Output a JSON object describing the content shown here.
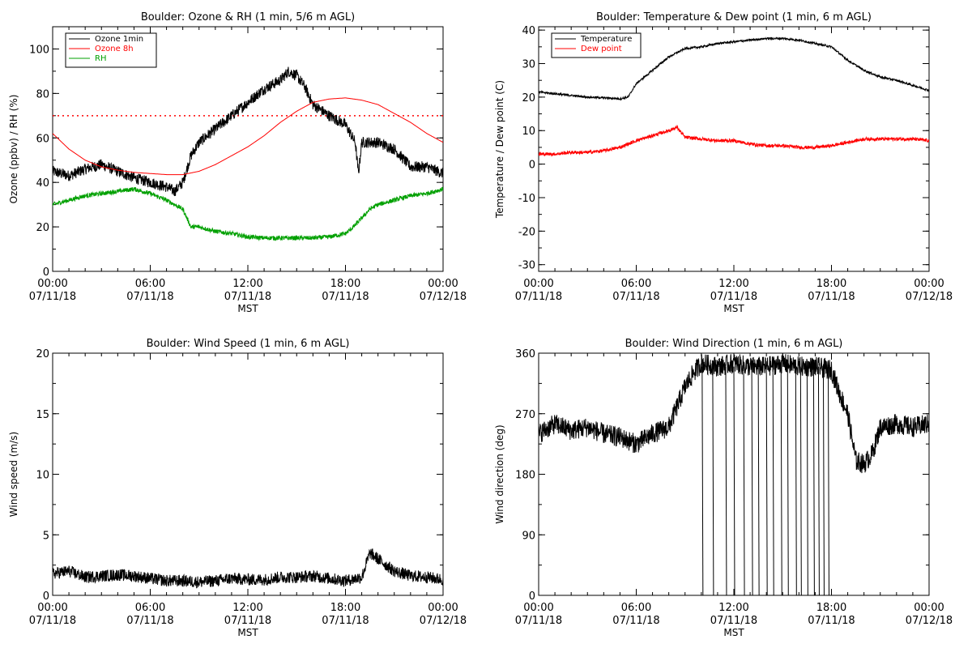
{
  "chart_data": [
    {
      "type": "line",
      "title": "Boulder: Ozone & RH (1 min, 5/6 m AGL)",
      "xlabel": "MST",
      "ylabel": "Ozone (ppbv) / RH (%)",
      "xlim": [
        0,
        24
      ],
      "ylim": [
        0,
        110
      ],
      "yticks": [
        0,
        20,
        40,
        60,
        80,
        100
      ],
      "xticks": [
        {
          "x": 0,
          "time": "00:00",
          "date": "07/11/18"
        },
        {
          "x": 6,
          "time": "06:00",
          "date": "07/11/18"
        },
        {
          "x": 12,
          "time": "12:00",
          "date": "07/11/18"
        },
        {
          "x": 18,
          "time": "18:00",
          "date": "07/11/18"
        },
        {
          "x": 24,
          "time": "00:00",
          "date": "07/12/18"
        }
      ],
      "reference_line": {
        "y": 70,
        "color": "#ff0000",
        "style": "dotted"
      },
      "legend": {
        "placement": "top-left"
      },
      "series": [
        {
          "name": "Ozone 1min",
          "color": "#000000",
          "noise": 2.5,
          "points": [
            [
              0,
              45
            ],
            [
              1,
              43
            ],
            [
              2,
              46
            ],
            [
              3,
              48
            ],
            [
              4,
              45
            ],
            [
              5,
              42
            ],
            [
              6,
              40
            ],
            [
              7,
              38
            ],
            [
              7.5,
              36
            ],
            [
              8,
              40
            ],
            [
              8.5,
              52
            ],
            [
              9,
              58
            ],
            [
              10,
              64
            ],
            [
              11,
              70
            ],
            [
              12,
              76
            ],
            [
              13,
              82
            ],
            [
              14,
              86
            ],
            [
              14.5,
              90
            ],
            [
              15,
              88
            ],
            [
              15.5,
              83
            ],
            [
              16,
              75
            ],
            [
              17,
              70
            ],
            [
              18,
              66
            ],
            [
              18.6,
              58
            ],
            [
              18.8,
              44
            ],
            [
              19,
              58
            ],
            [
              20,
              58
            ],
            [
              21,
              55
            ],
            [
              22,
              47
            ],
            [
              23,
              47
            ],
            [
              24,
              44
            ]
          ]
        },
        {
          "name": "Ozone 8h",
          "color": "#ff0000",
          "noise": 0,
          "points": [
            [
              0,
              62
            ],
            [
              1,
              55
            ],
            [
              2,
              50
            ],
            [
              3,
              47
            ],
            [
              4,
              45.5
            ],
            [
              5,
              44.5
            ],
            [
              6,
              44
            ],
            [
              7,
              43.5
            ],
            [
              8,
              43.5
            ],
            [
              9,
              45
            ],
            [
              10,
              48
            ],
            [
              11,
              52
            ],
            [
              12,
              56
            ],
            [
              13,
              61
            ],
            [
              14,
              67
            ],
            [
              15,
              72
            ],
            [
              16,
              76
            ],
            [
              17,
              77.5
            ],
            [
              18,
              78
            ],
            [
              19,
              77
            ],
            [
              20,
              75
            ],
            [
              21,
              71
            ],
            [
              22,
              67
            ],
            [
              23,
              62
            ],
            [
              24,
              58
            ]
          ]
        },
        {
          "name": "RH",
          "color": "#00a000",
          "noise": 1,
          "points": [
            [
              0,
              30
            ],
            [
              1,
              32
            ],
            [
              2,
              34
            ],
            [
              3,
              35
            ],
            [
              4,
              36
            ],
            [
              5,
              37
            ],
            [
              6,
              35
            ],
            [
              7,
              32
            ],
            [
              8,
              28
            ],
            [
              8.5,
              20
            ],
            [
              9,
              20
            ],
            [
              10,
              18
            ],
            [
              11,
              17
            ],
            [
              12,
              15.5
            ],
            [
              13,
              15
            ],
            [
              14,
              15
            ],
            [
              15,
              15
            ],
            [
              16,
              15
            ],
            [
              17,
              15.5
            ],
            [
              18,
              17
            ],
            [
              18.5,
              20
            ],
            [
              19,
              24
            ],
            [
              19.5,
              28
            ],
            [
              20,
              30
            ],
            [
              21,
              32
            ],
            [
              22,
              34
            ],
            [
              23,
              35
            ],
            [
              24,
              37
            ]
          ]
        }
      ]
    },
    {
      "type": "line",
      "title": "Boulder: Temperature & Dew point (1 min, 6 m AGL)",
      "xlabel": "MST",
      "ylabel": "Temperature / Dew point (C)",
      "xlim": [
        0,
        24
      ],
      "ylim": [
        -32,
        41
      ],
      "yticks": [
        -30,
        -20,
        -10,
        0,
        10,
        20,
        30,
        40
      ],
      "xticks": [
        {
          "x": 0,
          "time": "00:00",
          "date": "07/11/18"
        },
        {
          "x": 6,
          "time": "06:00",
          "date": "07/11/18"
        },
        {
          "x": 12,
          "time": "12:00",
          "date": "07/11/18"
        },
        {
          "x": 18,
          "time": "18:00",
          "date": "07/11/18"
        },
        {
          "x": 24,
          "time": "00:00",
          "date": "07/12/18"
        }
      ],
      "legend": {
        "placement": "top-left"
      },
      "series": [
        {
          "name": "Temperature",
          "color": "#000000",
          "noise": 0.3,
          "points": [
            [
              0,
              21.5
            ],
            [
              1,
              21
            ],
            [
              2,
              20.5
            ],
            [
              3,
              20
            ],
            [
              4,
              19.8
            ],
            [
              5,
              19.5
            ],
            [
              5.5,
              20
            ],
            [
              6,
              24
            ],
            [
              7,
              28
            ],
            [
              8,
              32
            ],
            [
              9,
              34.5
            ],
            [
              10,
              35
            ],
            [
              11,
              36
            ],
            [
              12,
              36.5
            ],
            [
              13,
              37
            ],
            [
              14,
              37.5
            ],
            [
              15,
              37.5
            ],
            [
              16,
              37
            ],
            [
              17,
              36
            ],
            [
              18,
              35
            ],
            [
              19,
              31
            ],
            [
              20,
              28
            ],
            [
              21,
              26
            ],
            [
              22,
              25
            ],
            [
              23,
              23.5
            ],
            [
              24,
              22
            ]
          ]
        },
        {
          "name": "Dew point",
          "color": "#ff0000",
          "noise": 0.5,
          "points": [
            [
              0,
              3
            ],
            [
              1,
              3
            ],
            [
              2,
              3.5
            ],
            [
              3,
              3.5
            ],
            [
              4,
              4
            ],
            [
              5,
              5
            ],
            [
              6,
              7
            ],
            [
              7,
              8.5
            ],
            [
              8,
              10
            ],
            [
              8.5,
              11
            ],
            [
              9,
              8
            ],
            [
              10,
              7.5
            ],
            [
              11,
              7
            ],
            [
              12,
              7
            ],
            [
              13,
              6
            ],
            [
              14,
              5.5
            ],
            [
              15,
              5.5
            ],
            [
              16,
              5
            ],
            [
              17,
              5
            ],
            [
              18,
              5.5
            ],
            [
              19,
              6.5
            ],
            [
              20,
              7.5
            ],
            [
              21,
              7.5
            ],
            [
              22,
              7.5
            ],
            [
              23,
              7.5
            ],
            [
              24,
              7
            ]
          ]
        }
      ]
    },
    {
      "type": "line",
      "title": "Boulder: Wind Speed (1 min, 6 m AGL)",
      "xlabel": "MST",
      "ylabel": "Wind speed (m/s)",
      "xlim": [
        0,
        24
      ],
      "ylim": [
        0,
        20
      ],
      "yticks": [
        0,
        5,
        10,
        15,
        20
      ],
      "xticks": [
        {
          "x": 0,
          "time": "00:00",
          "date": "07/11/18"
        },
        {
          "x": 6,
          "time": "06:00",
          "date": "07/11/18"
        },
        {
          "x": 12,
          "time": "12:00",
          "date": "07/11/18"
        },
        {
          "x": 18,
          "time": "18:00",
          "date": "07/11/18"
        },
        {
          "x": 24,
          "time": "00:00",
          "date": "07/12/18"
        }
      ],
      "series": [
        {
          "name": "",
          "color": "#000000",
          "noise": 0.5,
          "points": [
            [
              0,
              1.8
            ],
            [
              1,
              2
            ],
            [
              2,
              1.5
            ],
            [
              3,
              1.6
            ],
            [
              4,
              1.7
            ],
            [
              5,
              1.6
            ],
            [
              6,
              1.4
            ],
            [
              7,
              1.2
            ],
            [
              8,
              1.2
            ],
            [
              9,
              1.1
            ],
            [
              10,
              1.2
            ],
            [
              11,
              1.4
            ],
            [
              12,
              1.3
            ],
            [
              13,
              1.3
            ],
            [
              14,
              1.5
            ],
            [
              15,
              1.5
            ],
            [
              16,
              1.6
            ],
            [
              17,
              1.4
            ],
            [
              18,
              1.2
            ],
            [
              19,
              1.5
            ],
            [
              19.5,
              3.5
            ],
            [
              20,
              3
            ],
            [
              21,
              2
            ],
            [
              22,
              1.6
            ],
            [
              23,
              1.5
            ],
            [
              24,
              1.3
            ]
          ]
        }
      ]
    },
    {
      "type": "line",
      "title": "Boulder: Wind Direction (1 min, 6 m AGL)",
      "xlabel": "MST",
      "ylabel": "Wind direction (deg)",
      "xlim": [
        0,
        24
      ],
      "ylim": [
        0,
        360
      ],
      "yticks": [
        0,
        90,
        180,
        270,
        360
      ],
      "xticks": [
        {
          "x": 0,
          "time": "00:00",
          "date": "07/11/18"
        },
        {
          "x": 6,
          "time": "06:00",
          "date": "07/11/18"
        },
        {
          "x": 12,
          "time": "12:00",
          "date": "07/11/18"
        },
        {
          "x": 18,
          "time": "18:00",
          "date": "07/11/18"
        },
        {
          "x": 24,
          "time": "00:00",
          "date": "07/12/18"
        }
      ],
      "series": [
        {
          "name": "",
          "color": "#000000",
          "noise": 15,
          "points": [
            [
              0,
              240
            ],
            [
              1,
              255
            ],
            [
              2,
              245
            ],
            [
              3,
              250
            ],
            [
              4,
              240
            ],
            [
              5,
              235
            ],
            [
              6,
              225
            ],
            [
              7,
              240
            ],
            [
              8,
              250
            ],
            [
              9,
              310
            ],
            [
              9.5,
              330
            ],
            [
              10,
              345
            ],
            [
              11,
              340
            ],
            [
              12,
              345
            ],
            [
              13,
              340
            ],
            [
              14,
              340
            ],
            [
              15,
              345
            ],
            [
              16,
              340
            ],
            [
              17,
              340
            ],
            [
              18,
              335
            ],
            [
              18.5,
              300
            ],
            [
              19,
              270
            ],
            [
              19.5,
              200
            ],
            [
              20,
              195
            ],
            [
              20.5,
              210
            ],
            [
              21,
              250
            ],
            [
              22,
              255
            ],
            [
              23,
              250
            ],
            [
              24,
              255
            ]
          ]
        }
      ],
      "spikes_to_zero": [
        10.05,
        10.7,
        11.5,
        12.0,
        12.6,
        13.1,
        13.5,
        14.0,
        14.4,
        14.9,
        15.3,
        15.8,
        16.1,
        16.5,
        16.9,
        17.2,
        17.5,
        17.8
      ]
    }
  ]
}
